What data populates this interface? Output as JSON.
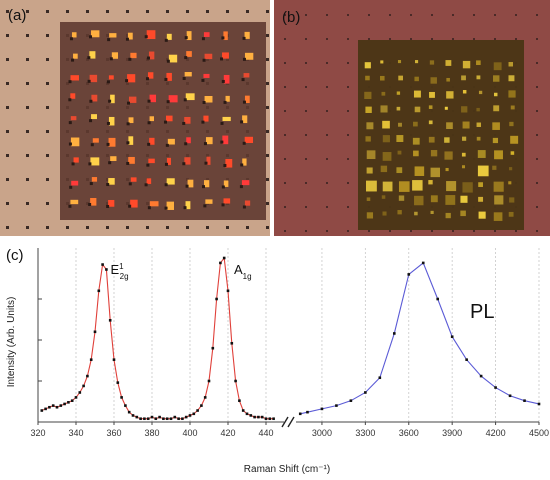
{
  "panel_labels": {
    "a": "(a)",
    "b": "(b)",
    "c": "(c)"
  },
  "colors": {
    "raman_fit": "#e0403a",
    "pl_fit": "#5b5bd6",
    "points": "#111111",
    "grid": "#c8c8c8",
    "image_a_background": "#c9a48a",
    "image_a_overlay": "#5f3a30",
    "image_b_background": "#8f4a45",
    "image_b_overlay": "#4a3515"
  },
  "chart_data": {
    "type": "line",
    "xlabel": "Raman Shift (cm⁻¹)",
    "ylabel": "Intensity (Arb. Units)",
    "axis_break": true,
    "grid": "vertical",
    "peak_labels": [
      {
        "main": "E",
        "sup": "1",
        "sub": "2g",
        "x": 355
      },
      {
        "main": "A",
        "sub": "1g",
        "x": 420
      }
    ],
    "pl_label": "PL",
    "raman": {
      "xlim": [
        320,
        450
      ],
      "ticks": [
        320,
        340,
        360,
        380,
        400,
        420,
        440
      ],
      "x": [
        322,
        324,
        326,
        328,
        330,
        332,
        334,
        336,
        338,
        340,
        342,
        344,
        346,
        348,
        350,
        352,
        354,
        356,
        358,
        360,
        362,
        364,
        366,
        368,
        370,
        372,
        374,
        376,
        378,
        380,
        382,
        384,
        386,
        388,
        390,
        392,
        394,
        396,
        398,
        400,
        402,
        404,
        406,
        408,
        410,
        412,
        414,
        416,
        418,
        420,
        422,
        424,
        426,
        428,
        430,
        432,
        434,
        436,
        438,
        440,
        442,
        444
      ],
      "y": [
        0.07,
        0.08,
        0.09,
        0.1,
        0.09,
        0.1,
        0.11,
        0.12,
        0.13,
        0.15,
        0.18,
        0.22,
        0.28,
        0.38,
        0.55,
        0.8,
        0.96,
        0.93,
        0.62,
        0.38,
        0.24,
        0.15,
        0.1,
        0.06,
        0.04,
        0.03,
        0.02,
        0.02,
        0.02,
        0.03,
        0.02,
        0.03,
        0.02,
        0.02,
        0.02,
        0.03,
        0.02,
        0.02,
        0.03,
        0.04,
        0.05,
        0.07,
        0.1,
        0.15,
        0.25,
        0.45,
        0.75,
        0.97,
        1.0,
        0.8,
        0.48,
        0.25,
        0.13,
        0.07,
        0.05,
        0.04,
        0.03,
        0.03,
        0.03,
        0.02,
        0.02,
        0.02
      ]
    },
    "pl": {
      "xlim": [
        2800,
        4500
      ],
      "ticks": [
        3000,
        3300,
        3600,
        3900,
        4200,
        4500
      ],
      "x": [
        2850,
        2900,
        3000,
        3100,
        3200,
        3300,
        3400,
        3500,
        3600,
        3700,
        3800,
        3900,
        4000,
        4100,
        4200,
        4300,
        4400,
        4500
      ],
      "y": [
        0.05,
        0.06,
        0.08,
        0.1,
        0.13,
        0.18,
        0.27,
        0.54,
        0.9,
        0.97,
        0.75,
        0.52,
        0.38,
        0.28,
        0.21,
        0.16,
        0.13,
        0.11
      ]
    }
  }
}
